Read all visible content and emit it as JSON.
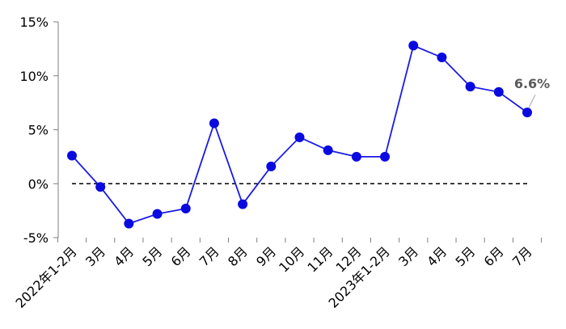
{
  "chart_data": {
    "type": "line",
    "categories": [
      "2022年1-2月",
      "3月",
      "4月",
      "5月",
      "6月",
      "7月",
      "8月",
      "9月",
      "10月",
      "11月",
      "12月",
      "2023年1-2月",
      "3月",
      "4月",
      "5月",
      "6月",
      "7月"
    ],
    "series": [
      {
        "values": [
          2.6,
          -0.3,
          -3.7,
          -2.8,
          -2.3,
          5.6,
          -1.9,
          1.6,
          4.3,
          3.1,
          2.5,
          2.5,
          12.8,
          11.7,
          9.0,
          8.5,
          6.6
        ]
      }
    ],
    "ylim": [
      -5,
      15
    ],
    "yticks": [
      -5,
      0,
      5,
      10,
      15
    ],
    "ytick_labels": [
      "-5%",
      "0%",
      "5%",
      "10%",
      "15%"
    ],
    "reference_line": {
      "y": 0,
      "style": "dashed"
    },
    "annotations": [
      {
        "index": 16,
        "text": "6.6%"
      }
    ],
    "colors": {
      "series": "#1a1ae6",
      "marker": "#0a0ae0",
      "axis": "#7f7f7f",
      "reference": "#000000",
      "label": "#595959"
    },
    "grid": false,
    "legend": "none"
  }
}
